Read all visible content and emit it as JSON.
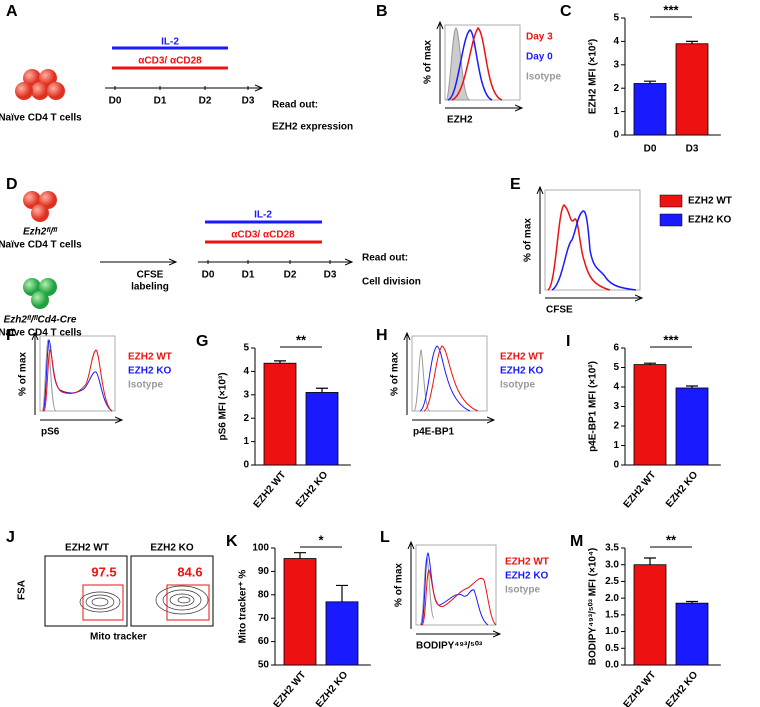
{
  "panels": {
    "A": {
      "label": "A",
      "cells": "Naïve CD4 T cells",
      "il2": "IL-2",
      "stim": "αCD3/ αCD28",
      "days": [
        "D0",
        "D1",
        "D2",
        "D3"
      ],
      "readout": "Read out:",
      "readout_target": "EZH2 expression"
    },
    "B": {
      "label": "B",
      "ylabel": "% of max",
      "xlabel": "EZH2",
      "legend": [
        "Day 3",
        "Day 0",
        "Isotype"
      ]
    },
    "D": {
      "label": "D",
      "wt_genotype": "Ezh2ᶠˡ/ᶠˡ",
      "ko_genotype": "Ezh2ᶠˡ/ᶠˡCd4-Cre",
      "cells": "Naïve CD4 T cells",
      "labeling": [
        "CFSE",
        "labeling"
      ],
      "il2": "IL-2",
      "stim": "αCD3/ αCD28",
      "days": [
        "D0",
        "D1",
        "D2",
        "D3"
      ],
      "readout": "Read out:",
      "readout_target": "Cell division"
    },
    "E": {
      "label": "E",
      "ylabel": "% of max",
      "xlabel": "CFSE",
      "legend": [
        "EZH2 WT",
        "EZH2 KO"
      ]
    },
    "F": {
      "label": "F",
      "ylabel": "% of max",
      "xlabel": "pS6",
      "legend": [
        "EZH2 WT",
        "EZH2 KO",
        "Isotype"
      ]
    },
    "H": {
      "label": "H",
      "ylabel": "% of max",
      "xlabel": "p4E-BP1",
      "legend": [
        "EZH2 WT",
        "EZH2 KO",
        "Isotype"
      ]
    },
    "J": {
      "label": "J",
      "ylabel": "FSA",
      "xlabel": "Mito tracker",
      "plots": [
        {
          "title": "EZH2 WT",
          "gate": 97.5
        },
        {
          "title": "EZH2 KO",
          "gate": 84.6
        }
      ]
    },
    "L": {
      "label": "L",
      "ylabel": "% of max",
      "xlabel": "BODIPY⁴⁹³/⁵⁰³",
      "legend": [
        "EZH2 WT",
        "EZH2 KO",
        "Isotype"
      ]
    }
  },
  "chart_data": [
    {
      "type": "bar",
      "label": "C",
      "ylabel": "EZH2 MFI (×10²)",
      "categories": [
        "D0",
        "D3"
      ],
      "values": [
        2.2,
        3.9
      ],
      "errors": [
        0.1,
        0.1
      ],
      "colors": [
        "#1a1aff",
        "#ee1111"
      ],
      "ylim": [
        0,
        5
      ],
      "yticks": [
        0,
        1,
        2,
        3,
        4,
        5
      ],
      "significance": "***"
    },
    {
      "type": "bar",
      "label": "G",
      "ylabel": "pS6 MFI (×10³)",
      "categories": [
        "EZH2 WT",
        "EZH2 KO"
      ],
      "values": [
        4.35,
        3.1
      ],
      "errors": [
        0.1,
        0.18
      ],
      "colors": [
        "#ee1111",
        "#1a1aff"
      ],
      "ylim": [
        0,
        5
      ],
      "yticks": [
        0,
        1,
        2,
        3,
        4,
        5
      ],
      "significance": "**"
    },
    {
      "type": "bar",
      "label": "I",
      "ylabel": "p4E-BP1 MFI (×10²)",
      "categories": [
        "EZH2 WT",
        "EZH2 KO"
      ],
      "values": [
        5.15,
        3.95
      ],
      "errors": [
        0.07,
        0.1
      ],
      "colors": [
        "#ee1111",
        "#1a1aff"
      ],
      "ylim": [
        0,
        6
      ],
      "yticks": [
        0,
        1,
        2,
        3,
        4,
        5,
        6
      ],
      "significance": "***"
    },
    {
      "type": "bar",
      "label": "K",
      "ylabel": "Mito tracker⁺ %",
      "categories": [
        "EZH2 WT",
        "EZH2 KO"
      ],
      "values": [
        95.5,
        77
      ],
      "errors": [
        2.5,
        7
      ],
      "colors": [
        "#ee1111",
        "#1a1aff"
      ],
      "ylim": [
        50,
        100
      ],
      "yticks": [
        50,
        60,
        70,
        80,
        90,
        100
      ],
      "significance": "*"
    },
    {
      "type": "bar",
      "label": "M",
      "ylabel": "BODIPY⁴⁹³/⁵⁰³ MFI (×10⁴)",
      "categories": [
        "EZH2 WT",
        "EZH2 KO"
      ],
      "values": [
        3.0,
        1.85
      ],
      "errors": [
        0.2,
        0.05
      ],
      "colors": [
        "#ee1111",
        "#1a1aff"
      ],
      "ylim": [
        0,
        3.5
      ],
      "yticks": [
        {
          "value": 0,
          "label": "0.0"
        },
        0.5,
        {
          "value": 1,
          "label": "1.0"
        },
        1.5,
        {
          "value": 2,
          "label": "2.0"
        },
        2.5,
        {
          "value": 3,
          "label": "3.0"
        },
        3.5
      ],
      "significance": "**"
    }
  ]
}
